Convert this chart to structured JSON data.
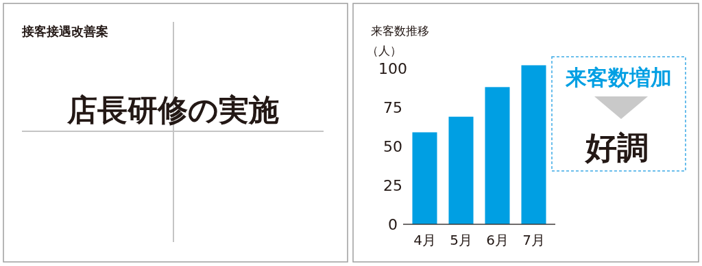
{
  "chart_data": [
    {
      "type": "other",
      "title": "接客接遇改善案",
      "annotations": [
        "店長研修の実施"
      ]
    },
    {
      "type": "bar",
      "title": "来客数推移",
      "ylabel": "（人）",
      "categories": [
        "4月",
        "5月",
        "6月",
        "7月"
      ],
      "values": [
        59,
        69,
        88,
        102
      ],
      "color": "#009fe3",
      "ylim": [
        0,
        105
      ],
      "yticks": [
        0,
        25,
        50,
        75,
        100
      ],
      "annotations": [
        "来客数増加",
        "好調"
      ]
    }
  ]
}
